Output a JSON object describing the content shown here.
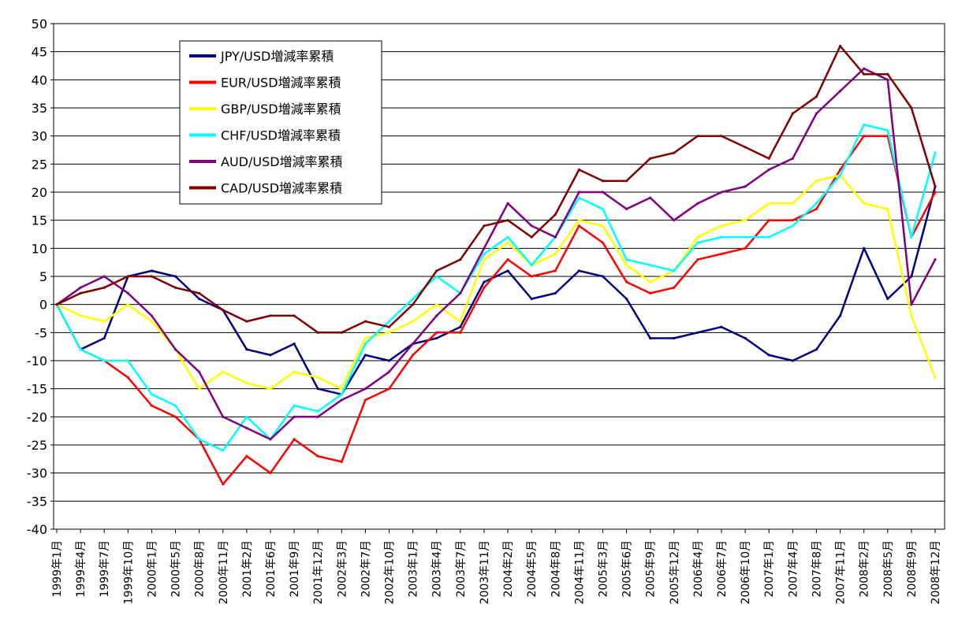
{
  "chart_data": {
    "type": "line",
    "title": "",
    "xlabel": "",
    "ylabel": "",
    "ylim": [
      -40,
      50
    ],
    "yticks": [
      50,
      45,
      40,
      35,
      30,
      25,
      20,
      15,
      10,
      5,
      0,
      -5,
      -10,
      -15,
      -20,
      -25,
      -30,
      -35,
      -40
    ],
    "grid": true,
    "legend_position": "top-left",
    "x_tick_labels": [
      "1999年1月",
      "1999年4月",
      "1999年7月",
      "1999年10月",
      "2000年1月",
      "2000年5月",
      "2000年8月",
      "2000年11月",
      "2001年2月",
      "2001年6月",
      "2001年9月",
      "2001年12月",
      "2002年3月",
      "2002年7月",
      "2002年10月",
      "2003年1月",
      "2003年4月",
      "2003年7月",
      "2003年11月",
      "2004年2月",
      "2004年5月",
      "2004年8月",
      "2004年11月",
      "2005年3月",
      "2005年6月",
      "2005年9月",
      "2005年12月",
      "2006年4月",
      "2006年7月",
      "2006年10月",
      "2007年1月",
      "2007年4月",
      "2007年8月",
      "2007年11月",
      "2008年2月",
      "2008年5月",
      "2008年9月",
      "2008年12月"
    ],
    "x_index": [
      0,
      1,
      2,
      3,
      4,
      5,
      6,
      7,
      8,
      9,
      10,
      11,
      12,
      13,
      14,
      15,
      16,
      17,
      18,
      19,
      20,
      21,
      22,
      23,
      24,
      25,
      26,
      27,
      28,
      29,
      30,
      31,
      32,
      33,
      34,
      35,
      36,
      37
    ],
    "series": [
      {
        "name": "JPY/USD増減率累積",
        "color": "#000080",
        "values": [
          0,
          -8,
          -6,
          5,
          6,
          5,
          1,
          -1,
          -8,
          -9,
          -7,
          -15,
          -16,
          -9,
          -10,
          -7,
          -6,
          -4,
          4,
          6,
          1,
          2,
          6,
          5,
          1,
          -6,
          -6,
          -5,
          -4,
          -6,
          -9,
          -10,
          -8,
          -2,
          10,
          1,
          5,
          21
        ]
      },
      {
        "name": "EUR/USD増減率累積",
        "color": "#ff0000",
        "values": [
          0,
          -8,
          -10,
          -13,
          -18,
          -20,
          -24,
          -32,
          -27,
          -30,
          -24,
          -27,
          -28,
          -17,
          -15,
          -9,
          -5,
          -5,
          3,
          8,
          5,
          6,
          14,
          11,
          4,
          2,
          3,
          8,
          9,
          10,
          15,
          15,
          17,
          24,
          30,
          30,
          12,
          20
        ]
      },
      {
        "name": "GBP/USD増減率累積",
        "color": "#ffff00",
        "values": [
          0,
          -2,
          -3,
          0,
          -3,
          -8,
          -15,
          -12,
          -14,
          -15,
          -12,
          -13,
          -15,
          -6,
          -5,
          -3,
          0,
          -3,
          8,
          11,
          7,
          9,
          15,
          14,
          7,
          4,
          6,
          12,
          14,
          15,
          18,
          18,
          22,
          23,
          18,
          17,
          -2,
          -13
        ]
      },
      {
        "name": "CHF/USD増減率累積",
        "color": "#00ffff",
        "values": [
          0,
          -8,
          -10,
          -10,
          -16,
          -18,
          -24,
          -26,
          -20,
          -24,
          -18,
          -19,
          -16,
          -7,
          -3,
          1,
          5,
          2,
          9,
          12,
          7,
          12,
          19,
          17,
          8,
          7,
          6,
          11,
          12,
          12,
          12,
          14,
          18,
          23,
          32,
          31,
          12,
          27
        ]
      },
      {
        "name": "AUD/USD増減率累積",
        "color": "#800080",
        "values": [
          0,
          3,
          5,
          2,
          -2,
          -8,
          -12,
          -20,
          -22,
          -24,
          -20,
          -20,
          -17,
          -15,
          -12,
          -7,
          -2,
          2,
          10,
          18,
          14,
          12,
          20,
          20,
          17,
          19,
          15,
          18,
          20,
          21,
          24,
          26,
          34,
          38,
          42,
          40,
          0,
          8
        ]
      },
      {
        "name": "CAD/USD増減率累積",
        "color": "#800000",
        "values": [
          0,
          2,
          3,
          5,
          5,
          3,
          2,
          -1,
          -3,
          -2,
          -2,
          -5,
          -5,
          -3,
          -4,
          0,
          6,
          8,
          14,
          15,
          12,
          16,
          24,
          22,
          22,
          26,
          27,
          30,
          30,
          28,
          26,
          34,
          37,
          46,
          41,
          41,
          35,
          21
        ]
      }
    ]
  }
}
